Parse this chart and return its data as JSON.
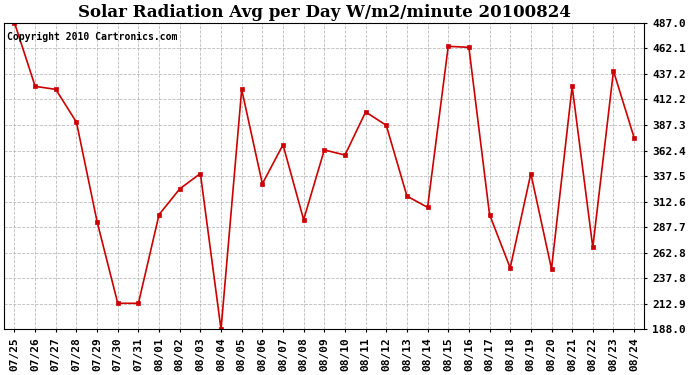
{
  "title": "Solar Radiation Avg per Day W/m2/minute 20100824",
  "copyright_text": "Copyright 2010 Cartronics.com",
  "dates": [
    "07/25",
    "07/26",
    "07/27",
    "07/28",
    "07/29",
    "07/30",
    "07/31",
    "08/01",
    "08/02",
    "08/03",
    "08/04",
    "08/05",
    "08/06",
    "08/07",
    "08/08",
    "08/09",
    "08/10",
    "08/11",
    "08/12",
    "08/13",
    "08/14",
    "08/15",
    "08/16",
    "08/17",
    "08/18",
    "08/19",
    "08/20",
    "08/21",
    "08/22",
    "08/23",
    "08/24"
  ],
  "values": [
    487.0,
    425.0,
    422.0,
    390.0,
    293.0,
    213.5,
    213.5,
    300.0,
    325.0,
    340.0,
    188.0,
    422.0,
    330.0,
    368.0,
    295.0,
    363.0,
    358.0,
    400.0,
    387.0,
    318.0,
    307.0,
    464.0,
    463.0,
    300.0,
    248.0,
    340.0,
    247.0,
    425.0,
    268.0,
    440.0,
    375.0
  ],
  "line_color": "#cc0000",
  "marker_color": "#cc0000",
  "bg_color": "#ffffff",
  "grid_color": "#aaaaaa",
  "ylim_min": 188.0,
  "ylim_max": 487.0,
  "ytick_values": [
    188.0,
    212.9,
    237.8,
    262.8,
    287.7,
    312.6,
    337.5,
    362.4,
    387.3,
    412.2,
    437.2,
    462.1,
    487.0
  ],
  "title_fontsize": 12,
  "copyright_fontsize": 7,
  "tick_fontsize": 8,
  "figwidth": 6.9,
  "figheight": 3.75,
  "dpi": 100
}
